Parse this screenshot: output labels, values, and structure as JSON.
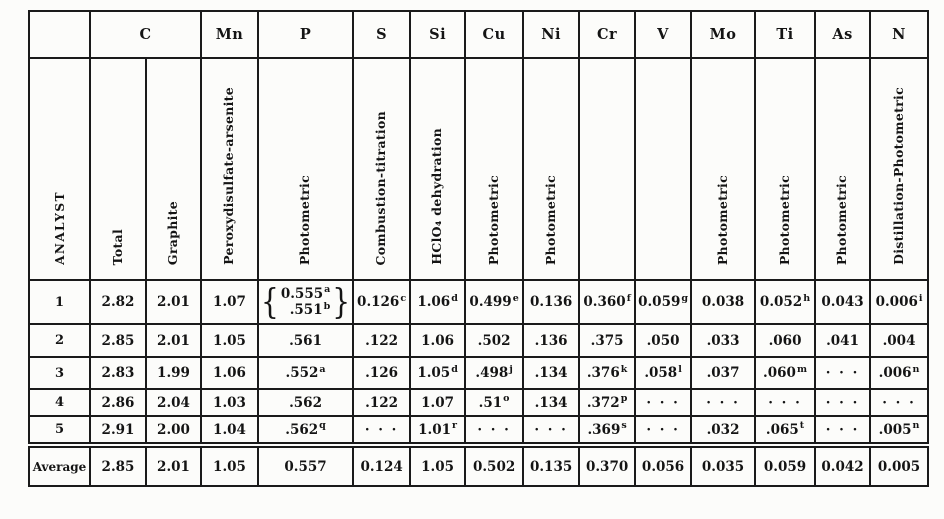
{
  "table": {
    "element_headers": [
      {
        "label": "",
        "span": 1
      },
      {
        "label": "C",
        "span": 2
      },
      {
        "label": "Mn",
        "span": 1
      },
      {
        "label": "P",
        "span": 1
      },
      {
        "label": "S",
        "span": 1
      },
      {
        "label": "Si",
        "span": 1
      },
      {
        "label": "Cu",
        "span": 1
      },
      {
        "label": "Ni",
        "span": 1
      },
      {
        "label": "Cr",
        "span": 1
      },
      {
        "label": "V",
        "span": 1
      },
      {
        "label": "Mo",
        "span": 1
      },
      {
        "label": "Ti",
        "span": 1
      },
      {
        "label": "As",
        "span": 1
      },
      {
        "label": "N",
        "span": 1
      }
    ],
    "method_headers": [
      "ANALYST",
      "Total",
      "Graphite",
      "Peroxydisulfate-arsenite",
      "Photometric",
      "Combustion-titration",
      "HClO₄ dehydration",
      "Photometric",
      "Photometric",
      "",
      "",
      "Photometric",
      "Photometric",
      "Photometric",
      "Distillation-Photometric"
    ],
    "rows": [
      {
        "label": "1",
        "cells": [
          {
            "v": "2.82"
          },
          {
            "v": "2.01"
          },
          {
            "v": "1.07"
          },
          {
            "brace": true,
            "lines": [
              {
                "v": "0.555",
                "sup": "a"
              },
              {
                "v": ".551",
                "sup": "b"
              }
            ]
          },
          {
            "v": "0.126",
            "sup": "c"
          },
          {
            "v": "1.06",
            "sup": "d"
          },
          {
            "v": "0.499",
            "sup": "e"
          },
          {
            "v": "0.136"
          },
          {
            "v": "0.360",
            "sup": "f"
          },
          {
            "v": "0.059",
            "sup": "g"
          },
          {
            "v": "0.038"
          },
          {
            "v": "0.052",
            "sup": "h"
          },
          {
            "v": "0.043"
          },
          {
            "v": "0.006",
            "sup": "i"
          }
        ]
      },
      {
        "label": "2",
        "cells": [
          {
            "v": "2.85"
          },
          {
            "v": "2.01"
          },
          {
            "v": "1.05"
          },
          {
            "v": ".561"
          },
          {
            "v": ".122"
          },
          {
            "v": "1.06"
          },
          {
            "v": ".502"
          },
          {
            "v": ".136"
          },
          {
            "v": ".375"
          },
          {
            "v": ".050"
          },
          {
            "v": ".033"
          },
          {
            "v": ".060"
          },
          {
            "v": ".041"
          },
          {
            "v": ".004"
          }
        ]
      },
      {
        "label": "3",
        "cells": [
          {
            "v": "2.83"
          },
          {
            "v": "1.99"
          },
          {
            "v": "1.06"
          },
          {
            "v": ".552",
            "sup": "a"
          },
          {
            "v": ".126"
          },
          {
            "v": "1.05",
            "sup": "d"
          },
          {
            "v": ".498",
            "sup": "j"
          },
          {
            "v": ".134"
          },
          {
            "v": ".376",
            "sup": "k"
          },
          {
            "v": ".058",
            "sup": "l"
          },
          {
            "v": ".037"
          },
          {
            "v": ".060",
            "sup": "m"
          },
          {
            "v": "· · ·",
            "dots": true
          },
          {
            "v": ".006",
            "sup": "n"
          }
        ]
      },
      {
        "label": "4",
        "cells": [
          {
            "v": "2.86"
          },
          {
            "v": "2.04"
          },
          {
            "v": "1.03"
          },
          {
            "v": ".562"
          },
          {
            "v": ".122"
          },
          {
            "v": "1.07"
          },
          {
            "v": ".51",
            "sup": "o"
          },
          {
            "v": ".134"
          },
          {
            "v": ".372",
            "sup": "p"
          },
          {
            "v": "· · ·",
            "dots": true
          },
          {
            "v": "· · ·",
            "dots": true
          },
          {
            "v": "· · ·",
            "dots": true
          },
          {
            "v": "· · ·",
            "dots": true
          },
          {
            "v": "· · ·",
            "dots": true
          }
        ]
      },
      {
        "label": "5",
        "cells": [
          {
            "v": "2.91"
          },
          {
            "v": "2.00"
          },
          {
            "v": "1.04"
          },
          {
            "v": ".562",
            "sup": "q"
          },
          {
            "v": "· · ·",
            "dots": true
          },
          {
            "v": "1.01",
            "sup": "r"
          },
          {
            "v": "· · ·",
            "dots": true
          },
          {
            "v": "· · ·",
            "dots": true
          },
          {
            "v": ".369",
            "sup": "s"
          },
          {
            "v": "· · ·",
            "dots": true
          },
          {
            "v": ".032"
          },
          {
            "v": ".065",
            "sup": "t"
          },
          {
            "v": "· · ·",
            "dots": true
          },
          {
            "v": ".005",
            "sup": "n"
          }
        ]
      },
      {
        "label": "Average",
        "average": true,
        "cells": [
          {
            "v": "2.85"
          },
          {
            "v": "2.01"
          },
          {
            "v": "1.05"
          },
          {
            "v": "0.557"
          },
          {
            "v": "0.124"
          },
          {
            "v": "1.05"
          },
          {
            "v": "0.502"
          },
          {
            "v": "0.135"
          },
          {
            "v": "0.370"
          },
          {
            "v": "0.056"
          },
          {
            "v": "0.035"
          },
          {
            "v": "0.059"
          },
          {
            "v": "0.042"
          },
          {
            "v": "0.005"
          }
        ]
      }
    ]
  }
}
